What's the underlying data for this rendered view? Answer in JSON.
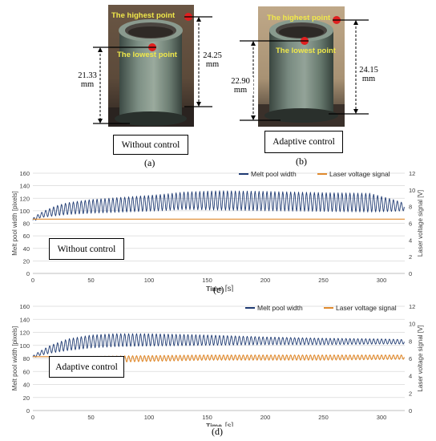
{
  "panel_a": {
    "label_highest": "The highest point",
    "label_lowest": "The lowest point",
    "dim_left_value": "21.33",
    "dim_left_unit": "mm",
    "dim_right_value": "24.25",
    "dim_right_unit": "mm",
    "box_label": "Without control",
    "caption": "(a)"
  },
  "panel_b": {
    "label_highest": "The highest point",
    "label_lowest": "The lowest point",
    "dim_left_value": "22.90",
    "dim_left_unit": "mm",
    "dim_right_value": "24.15",
    "dim_right_unit": "mm",
    "box_label": "Adaptive control",
    "caption": "(b)"
  },
  "panel_c": {
    "caption": "(c)"
  },
  "panel_d": {
    "caption": "(d)"
  },
  "colors": {
    "width_series": "#1f3b73",
    "voltage_series": "#e08a2e",
    "marker": "#e02020"
  },
  "chart_data": [
    {
      "type": "line",
      "box_label": "Without control",
      "xlabel": "Time",
      "xunit": "[s]",
      "ylabel": "Melt pool width [pixels]",
      "y2label": "Laser voltage signal [V]",
      "xlim": [
        0,
        320
      ],
      "ylim": [
        0,
        160
      ],
      "y2lim": [
        0,
        12
      ],
      "xticks": [
        0,
        50,
        100,
        150,
        200,
        250,
        300
      ],
      "yticks": [
        0,
        20,
        40,
        60,
        80,
        100,
        120,
        140,
        160
      ],
      "y2ticks": [
        0,
        2,
        4,
        6,
        8,
        10,
        12
      ],
      "legend_position": "top-right",
      "grid": true,
      "series": [
        {
          "name": "Melt pool width",
          "axis": "left",
          "oscillation_period_s": 3.4,
          "envelope": {
            "t": [
              0,
              5,
              10,
              20,
              30,
              50,
              80,
              110,
              130,
              160,
              200,
              250,
              290,
              310,
              320
            ],
            "min": [
              82,
              88,
              90,
              92,
              94,
              96,
              98,
              100,
              102,
              101,
              100,
              99,
              98,
              99,
              100
            ],
            "max": [
              88,
              95,
              100,
              108,
              113,
              118,
              122,
              126,
              130,
              132,
              131,
              129,
              128,
              118,
              112
            ]
          }
        },
        {
          "name": "Laser voltage signal",
          "axis": "right",
          "points": {
            "t": [
              0,
              320
            ],
            "v": [
              6.5,
              6.5
            ]
          }
        }
      ]
    },
    {
      "type": "line",
      "box_label": "Adaptive control",
      "xlabel": "Time",
      "xunit": "[s]",
      "ylabel": "Melt pool width [pixels]",
      "y2label": "Laser voltage signal [V]",
      "xlim": [
        0,
        320
      ],
      "ylim": [
        0,
        160
      ],
      "y2lim": [
        0,
        12
      ],
      "xticks": [
        0,
        50,
        100,
        150,
        200,
        250,
        300
      ],
      "yticks": [
        0,
        20,
        40,
        60,
        80,
        100,
        120,
        140,
        160
      ],
      "y2ticks": [
        0,
        2,
        4,
        6,
        8,
        10,
        12
      ],
      "legend_position": "top-right",
      "grid": true,
      "series": [
        {
          "name": "Melt pool width",
          "axis": "left",
          "oscillation_period_s": 3.4,
          "envelope": {
            "t": [
              0,
              5,
              15,
              30,
              50,
              70,
              100,
              150,
              200,
              250,
              300,
              320
            ],
            "min": [
              80,
              84,
              88,
              92,
              96,
              98,
              99,
              100,
              101,
              101,
              102,
              102
            ],
            "max": [
              84,
              90,
              100,
              110,
              116,
              118,
              118,
              116,
              113,
              111,
              110,
              109
            ]
          }
        },
        {
          "name": "Laser voltage signal",
          "axis": "right",
          "oscillation_period_s": 3.4,
          "envelope": {
            "t": [
              0,
              16,
              20,
              40,
              80,
              150,
              250,
              320
            ],
            "min": [
              6.2,
              6.2,
              5.4,
              5.5,
              5.6,
              5.8,
              5.8,
              5.9
            ],
            "max": [
              6.2,
              6.2,
              6.1,
              6.2,
              6.3,
              6.4,
              6.4,
              6.4
            ]
          }
        }
      ]
    }
  ]
}
